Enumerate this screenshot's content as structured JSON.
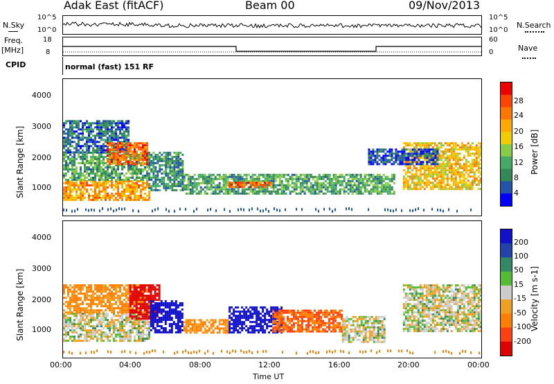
{
  "header": {
    "station": "Adak East (fitACF)",
    "beam": "Beam 00",
    "date": "09/Nov/2013"
  },
  "noise_panel": {
    "left_label": "N.Sky",
    "right_label": "N.Search",
    "left_ticks": [
      "10^5",
      "10^0"
    ],
    "right_ticks": [
      "10^5",
      "10^0"
    ]
  },
  "freq_panel": {
    "left_label_1": "Freq.",
    "left_label_2": "[MHz]",
    "right_label": "Nave",
    "left_ticks": [
      "18",
      "8"
    ],
    "right_ticks": [
      "60",
      "0"
    ]
  },
  "cpid_panel": {
    "label": "CPID",
    "text": "normal (fast) 151 RF"
  },
  "power_panel": {
    "ylabel": "Slant Range [km]",
    "yticks": [
      "1000",
      "2000",
      "3000",
      "4000"
    ],
    "colorbar_label": "Power [dB]",
    "colorbar_ticks": [
      "4",
      "8",
      "12",
      "16",
      "20",
      "24",
      "28"
    ],
    "colorbar_colors": [
      "#0000ff",
      "#2255aa",
      "#338855",
      "#44aa66",
      "#88cc44",
      "#eecc00",
      "#ffaa00",
      "#ff7700",
      "#ff4400",
      "#ee0000"
    ]
  },
  "velocity_panel": {
    "ylabel": "Slant Range [km]",
    "yticks": [
      "1000",
      "2000",
      "3000",
      "4000"
    ],
    "colorbar_label": "Velocity [m s-1]",
    "colorbar_ticks": [
      "200",
      "100",
      "50",
      "15",
      "-15",
      "-50",
      "-100",
      "-200"
    ],
    "colorbar_colors": [
      "#1111cc",
      "#2244aa",
      "#338866",
      "#55bb33",
      "#cccccc",
      "#f0a020",
      "#ff8000",
      "#ff4010",
      "#e00000"
    ]
  },
  "xaxis": {
    "ticks": [
      "00:00",
      "04:00",
      "08:00",
      "12:00",
      "16:00",
      "20:00",
      "00:00"
    ],
    "label": "Time UT"
  },
  "chart_data": {
    "type": "heatmap",
    "title": "Adak East (fitACF)  Beam 00  09/Nov/2013",
    "xlabel": "Time UT",
    "ylabel": "Slant Range [km]",
    "xlim_hours": [
      0,
      24
    ],
    "ylim_km": [
      180,
      4500
    ],
    "series": [
      {
        "name": "Power [dB]",
        "blobs": [
          {
            "t0": 0.0,
            "t1": 4.9,
            "r0": 700,
            "r1": 1300,
            "value": 22
          },
          {
            "t0": 0.0,
            "t1": 4.9,
            "r0": 1300,
            "r1": 2200,
            "value": 12
          },
          {
            "t0": 0.0,
            "t1": 3.8,
            "r0": 2200,
            "r1": 3200,
            "value": 8
          },
          {
            "t0": 2.5,
            "t1": 4.8,
            "r0": 1800,
            "r1": 2500,
            "value": 26
          },
          {
            "t0": 4.9,
            "t1": 6.9,
            "r0": 1000,
            "r1": 2200,
            "value": 10
          },
          {
            "t0": 6.9,
            "t1": 19.0,
            "r0": 900,
            "r1": 1500,
            "value": 12
          },
          {
            "t0": 9.5,
            "t1": 12.0,
            "r0": 1100,
            "r1": 1250,
            "value": 26
          },
          {
            "t0": 19.5,
            "t1": 24.0,
            "r0": 1000,
            "r1": 2500,
            "value": 20
          },
          {
            "t0": 17.5,
            "t1": 21.5,
            "r0": 1800,
            "r1": 2300,
            "value": 6
          }
        ]
      },
      {
        "name": "Velocity [m s-1]",
        "blobs": [
          {
            "t0": 0.0,
            "t1": 4.9,
            "r0": 700,
            "r1": 1600,
            "value": 0
          },
          {
            "t0": 0.0,
            "t1": 4.9,
            "r0": 1600,
            "r1": 2500,
            "value": -60
          },
          {
            "t0": 3.8,
            "t1": 5.5,
            "r0": 1400,
            "r1": 2500,
            "value": -250
          },
          {
            "t0": 5.0,
            "t1": 6.8,
            "r0": 1000,
            "r1": 2000,
            "value": 250
          },
          {
            "t0": 6.9,
            "t1": 9.5,
            "r0": 1000,
            "r1": 1400,
            "value": -60
          },
          {
            "t0": 9.5,
            "t1": 12.5,
            "r0": 1000,
            "r1": 1800,
            "value": 250
          },
          {
            "t0": 12.0,
            "t1": 16.0,
            "r0": 1000,
            "r1": 1700,
            "value": -100
          },
          {
            "t0": 16.0,
            "t1": 18.5,
            "r0": 700,
            "r1": 1500,
            "value": 0
          },
          {
            "t0": 19.5,
            "t1": 24.0,
            "r0": 1000,
            "r1": 2500,
            "value": 0
          }
        ]
      }
    ]
  }
}
